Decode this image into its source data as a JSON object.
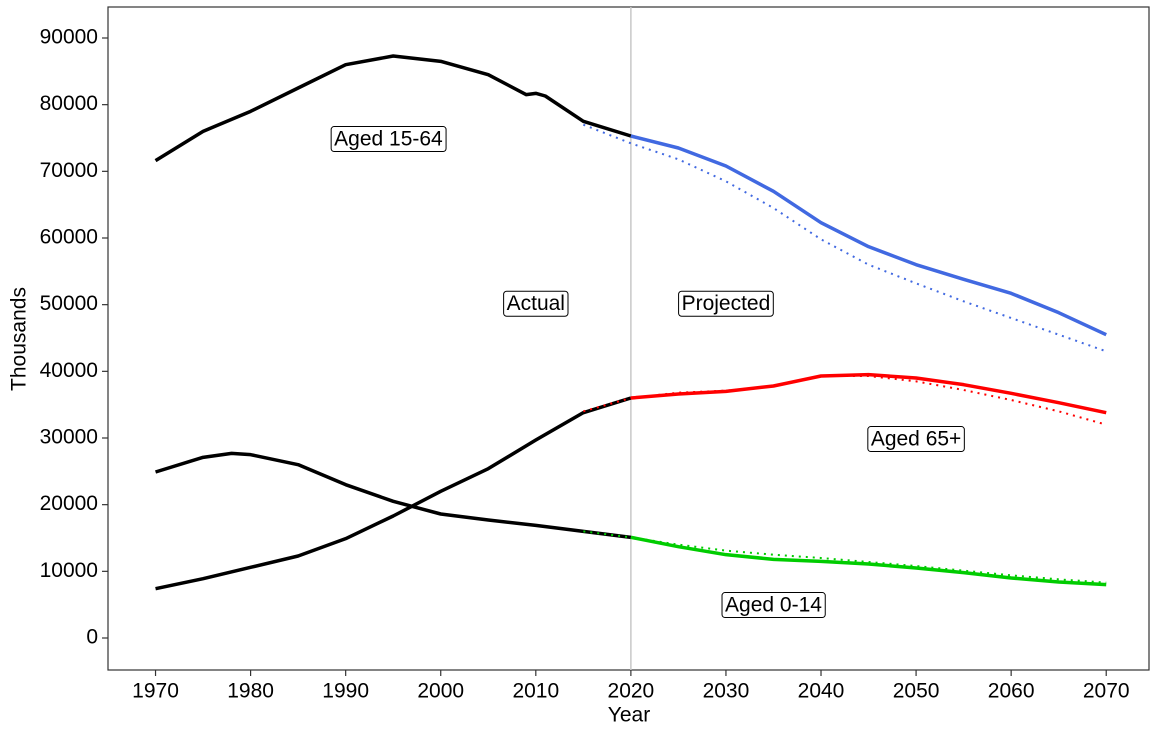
{
  "chart_data": {
    "type": "line",
    "x_label": "Year",
    "y_label": "Thousands",
    "xlim": [
      1965,
      2074.5
    ],
    "ylim": [
      -4800,
      94650
    ],
    "xticks": [
      1970,
      1980,
      1990,
      2000,
      2010,
      2020,
      2030,
      2040,
      2050,
      2060,
      2070
    ],
    "yticks": [
      0,
      10000,
      20000,
      30000,
      40000,
      50000,
      60000,
      70000,
      80000,
      90000
    ],
    "vline": 2020,
    "vline_color": "#c8c8c8",
    "series": [
      {
        "color": "#000000",
        "style": "solid",
        "x": [
          1970,
          1975,
          1980,
          1985,
          1990,
          1995,
          2000,
          2005,
          2009,
          2010,
          2011,
          2015,
          2020
        ],
        "values": [
          71600,
          76000,
          79000,
          82500,
          86000,
          87300,
          86500,
          84500,
          81500,
          81700,
          81300,
          77500,
          75300
        ]
      },
      {
        "color": "#4169e1",
        "style": "dotted",
        "x": [
          2015,
          2020,
          2025,
          2030,
          2035,
          2040,
          2045,
          2050,
          2055,
          2060,
          2065,
          2070
        ],
        "values": [
          77000,
          74200,
          71800,
          68500,
          64500,
          59800,
          56000,
          53200,
          50500,
          48000,
          45500,
          43000
        ]
      },
      {
        "color": "#4169e1",
        "style": "solid",
        "x": [
          2020,
          2025,
          2030,
          2035,
          2040,
          2045,
          2050,
          2055,
          2060,
          2065,
          2070
        ],
        "values": [
          75300,
          73500,
          70800,
          67000,
          62300,
          58700,
          56000,
          53800,
          51700,
          48800,
          45500
        ]
      },
      {
        "color": "#000000",
        "style": "solid",
        "x": [
          1970,
          1975,
          1980,
          1985,
          1990,
          1995,
          2000,
          2005,
          2010,
          2015,
          2020
        ],
        "values": [
          7400,
          8900,
          10600,
          12300,
          14900,
          18300,
          22000,
          25400,
          29700,
          33800,
          36000
        ]
      },
      {
        "color": "#ff0000",
        "style": "dotted",
        "x": [
          2015,
          2020,
          2025,
          2030,
          2035,
          2040,
          2045,
          2050,
          2055,
          2060,
          2065,
          2070
        ],
        "values": [
          34000,
          36000,
          36800,
          37100,
          37800,
          39300,
          39300,
          38500,
          37200,
          35700,
          34000,
          32000
        ]
      },
      {
        "color": "#ff0000",
        "style": "solid",
        "x": [
          2020,
          2025,
          2030,
          2035,
          2040,
          2045,
          2050,
          2055,
          2060,
          2065,
          2070
        ],
        "values": [
          36000,
          36600,
          37000,
          37800,
          39300,
          39500,
          39000,
          38000,
          36700,
          35300,
          33800
        ]
      },
      {
        "color": "#000000",
        "style": "solid",
        "x": [
          1970,
          1975,
          1978,
          1980,
          1985,
          1990,
          1995,
          2000,
          2005,
          2010,
          2015,
          2020
        ],
        "values": [
          24900,
          27100,
          27700,
          27500,
          26000,
          23000,
          20500,
          18600,
          17700,
          16900,
          16000,
          15100
        ]
      },
      {
        "color": "#00cc00",
        "style": "dotted",
        "x": [
          2015,
          2020,
          2025,
          2030,
          2035,
          2040,
          2045,
          2050,
          2055,
          2060,
          2065,
          2070
        ],
        "values": [
          16000,
          15100,
          14000,
          13100,
          12500,
          12000,
          11400,
          10800,
          10100,
          9400,
          8800,
          8300
        ]
      },
      {
        "color": "#00cc00",
        "style": "solid",
        "x": [
          2020,
          2025,
          2030,
          2035,
          2040,
          2045,
          2050,
          2055,
          2060,
          2065,
          2070
        ],
        "values": [
          15100,
          13700,
          12500,
          11800,
          11500,
          11100,
          10500,
          9800,
          9000,
          8400,
          8000
        ]
      }
    ],
    "annotations": [
      {
        "text": "Aged 15-64",
        "x": 1994.5,
        "y": 74700
      },
      {
        "text": "Actual",
        "x": 2010,
        "y": 50000
      },
      {
        "text": "Projected",
        "x": 2030,
        "y": 50000
      },
      {
        "text": "Aged 65+",
        "x": 2050,
        "y": 29700
      },
      {
        "text": "Aged 0-14",
        "x": 2035,
        "y": 4800
      }
    ]
  }
}
